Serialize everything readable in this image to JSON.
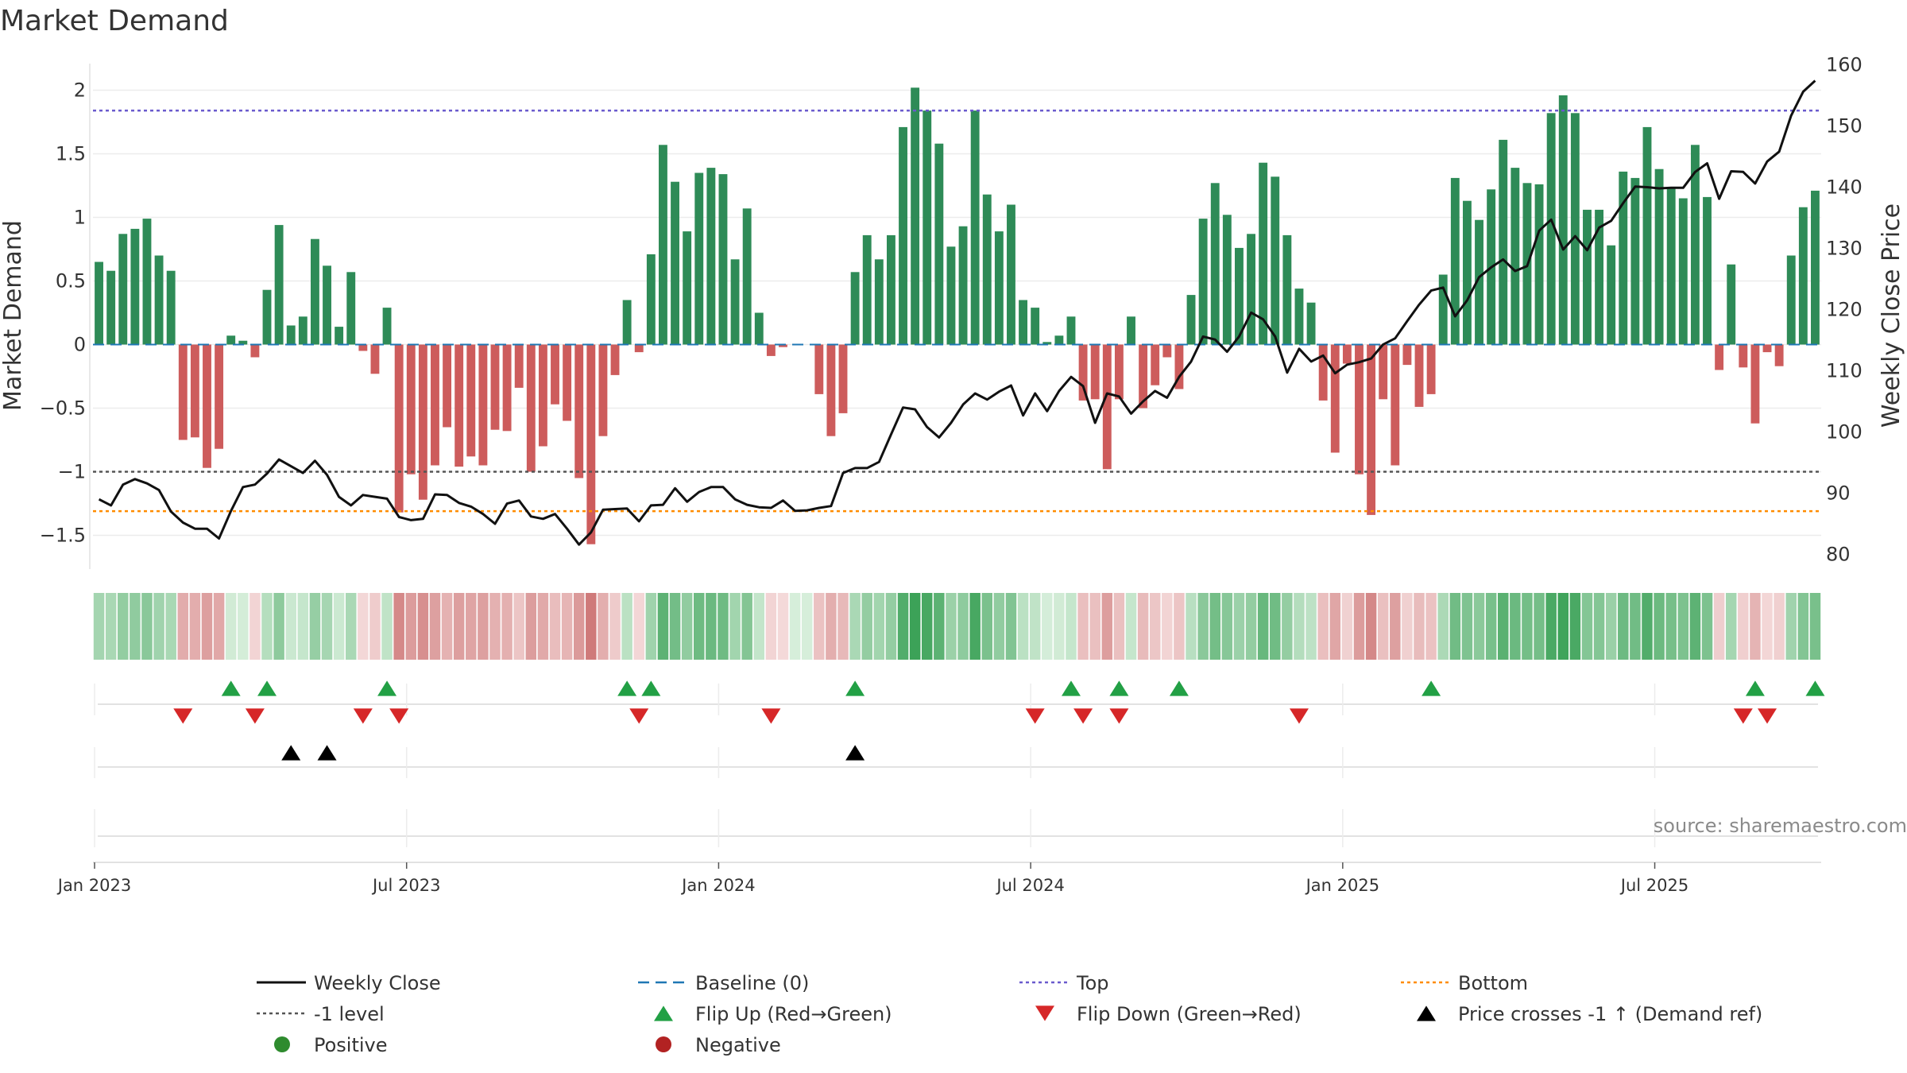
{
  "chart_data": {
    "type": "bar",
    "title": "Market Demand",
    "ylabel_left": "Market Demand",
    "ylabel_right": "Weekly Close Price",
    "ylim_left": [
      -1.75,
      2.15
    ],
    "ylim_right": [
      77,
      160
    ],
    "yticks_left": [
      "2",
      "1.5",
      "1",
      "0.5",
      "0",
      "−0.5",
      "−1",
      "−1.5"
    ],
    "yticks_left_values": [
      2,
      1.5,
      1,
      0.5,
      0,
      -0.5,
      -1,
      -1.5
    ],
    "yticks_right": [
      "160",
      "150",
      "140",
      "130",
      "120",
      "110",
      "100",
      "90",
      "80"
    ],
    "yticks_right_values": [
      160,
      150,
      140,
      130,
      120,
      110,
      100,
      90,
      80
    ],
    "xticks": [
      "Jan 2023",
      "Jul 2023",
      "Jan 2024",
      "Jul 2024",
      "Jan 2025",
      "Jul 2025"
    ],
    "xticks_week_index": [
      0,
      26,
      52,
      78,
      104,
      130
    ],
    "reference_lines": {
      "top": 1.84,
      "minus_one": -1.0,
      "bottom": -1.31,
      "baseline": 0
    },
    "colors": {
      "positive_bar": "#2e8b57",
      "negative_bar": "#cd5c5c",
      "close_line": "#111111",
      "baseline": "#1f77b4",
      "top": "#6a5acd",
      "minus_one": "#555555",
      "bottom": "#ff8c00",
      "flip_up": "#22a045",
      "flip_down": "#d62728",
      "cross": "#000000",
      "positive_dot": "#2e8b2e",
      "negative_dot": "#b22222"
    },
    "start_week": "2023-01-02",
    "series": [
      {
        "name": "Market Demand",
        "values": [
          0.65,
          0.58,
          0.87,
          0.91,
          0.99,
          0.7,
          0.58,
          -0.75,
          -0.73,
          -0.97,
          -0.82,
          0.07,
          0.03,
          -0.1,
          0.43,
          0.94,
          0.15,
          0.22,
          0.83,
          0.62,
          0.14,
          0.57,
          -0.05,
          -0.23,
          0.29,
          -1.32,
          -1.02,
          -1.22,
          -0.95,
          -0.65,
          -0.96,
          -0.88,
          -0.95,
          -0.67,
          -0.68,
          -0.34,
          -1.0,
          -0.8,
          -0.47,
          -0.6,
          -1.05,
          -1.57,
          -0.72,
          -0.24,
          0.35,
          -0.06,
          0.71,
          1.57,
          1.28,
          0.89,
          1.35,
          1.39,
          1.34,
          0.67,
          1.07,
          0.25,
          -0.09,
          -0.02,
          0,
          0,
          -0.39,
          -0.72,
          -0.54,
          0.57,
          0.86,
          0.67,
          0.86,
          1.71,
          2.02,
          1.84,
          1.58,
          0.77,
          0.93,
          1.84,
          1.18,
          0.89,
          1.1,
          0.35,
          0.29,
          0.02,
          0.07,
          0.22,
          -0.44,
          -0.43,
          -0.98,
          -0.43,
          0.22,
          -0.5,
          -0.32,
          -0.1,
          -0.35,
          0.39,
          0.99,
          1.27,
          1.02,
          0.76,
          0.87,
          1.43,
          1.32,
          0.86,
          0.44,
          0.33,
          -0.44,
          -0.85,
          -0.15,
          -1.02,
          -1.34,
          -0.43,
          -0.95,
          -0.16,
          -0.49,
          -0.39,
          0.55,
          1.31,
          1.13,
          0.98,
          1.22,
          1.61,
          1.39,
          1.27,
          1.26,
          1.82,
          1.96,
          1.82,
          1.06,
          1.06,
          0.78,
          1.36,
          1.31,
          1.71,
          1.38,
          1.24,
          1.15,
          1.57,
          1.16,
          -0.2,
          0.63,
          -0.18,
          -0.62,
          -0.06,
          -0.17,
          0.7,
          1.08,
          1.21
        ]
      },
      {
        "name": "Weekly Close",
        "values": [
          89.0,
          88.0,
          91.4,
          92.3,
          91.6,
          90.5,
          87.0,
          85.2,
          84.2,
          84.2,
          82.6,
          87.1,
          91.0,
          91.4,
          93.2,
          95.5,
          94.4,
          93.3,
          95.3,
          93.0,
          89.4,
          88.0,
          89.7,
          89.4,
          89.1,
          86.1,
          85.6,
          85.8,
          89.8,
          89.7,
          88.4,
          87.8,
          86.6,
          85.0,
          88.3,
          88.8,
          86.2,
          85.8,
          86.6,
          84.2,
          81.6,
          83.6,
          87.3,
          87.4,
          87.5,
          85.4,
          88.0,
          88.1,
          90.8,
          88.6,
          90.2,
          91.0,
          91.0,
          89.0,
          88.1,
          87.7,
          87.6,
          88.8,
          87.1,
          87.2,
          87.6,
          87.9,
          93.3,
          94.1,
          94.1,
          95.1,
          99.6,
          104.0,
          103.7,
          100.8,
          99.1,
          101.5,
          104.5,
          106.3,
          105.3,
          106.6,
          107.6,
          102.7,
          106.3,
          103.4,
          106.7,
          109.0,
          107.5,
          101.5,
          106.3,
          105.8,
          103.0,
          105.0,
          106.7,
          105.6,
          109.0,
          111.5,
          115.6,
          115.1,
          113.1,
          115.6,
          119.5,
          118.4,
          115.6,
          109.7,
          113.6,
          111.5,
          112.5,
          109.6,
          111.0,
          111.4,
          112.0,
          114.3,
          115.3,
          118.1,
          120.8,
          123.1,
          123.6,
          118.9,
          121.5,
          125.3,
          126.9,
          128.2,
          126.3,
          127.1,
          132.9,
          134.7,
          129.8,
          132.0,
          129.7,
          133.4,
          134.5,
          137.4,
          140.1,
          140.0,
          139.8,
          139.9,
          139.9,
          142.5,
          143.9,
          138.1,
          142.6,
          142.5,
          140.6,
          144.2,
          145.8,
          151.7,
          155.6,
          157.4
        ]
      }
    ],
    "strip_cells": [
      {
        "v": 0.65
      },
      {
        "v": 0.58
      },
      {
        "v": 0.87
      },
      {
        "v": 0.91
      },
      {
        "v": 0.99
      },
      {
        "v": 0.7
      },
      {
        "v": 0.58
      },
      {
        "v": -0.75
      },
      {
        "v": -0.73
      },
      {
        "v": -0.97
      },
      {
        "v": -0.82
      },
      {
        "v": 0.07
      },
      {
        "v": 0.03
      },
      {
        "v": -0.1
      },
      {
        "v": 0.43
      },
      {
        "v": 0.94
      },
      {
        "v": 0.15
      },
      {
        "v": 0.22
      },
      {
        "v": 0.83
      },
      {
        "v": 0.62
      },
      {
        "v": 0.14
      },
      {
        "v": 0.57
      },
      {
        "v": -0.05
      },
      {
        "v": -0.23
      },
      {
        "v": 0.29
      },
      {
        "v": -1.32
      },
      {
        "v": -1.02
      },
      {
        "v": -1.22
      },
      {
        "v": -0.95
      },
      {
        "v": -0.65
      },
      {
        "v": -0.96
      },
      {
        "v": -0.88
      },
      {
        "v": -0.95
      },
      {
        "v": -0.67
      },
      {
        "v": -0.68
      },
      {
        "v": -0.34
      },
      {
        "v": -1.0
      },
      {
        "v": -0.8
      },
      {
        "v": -0.47
      },
      {
        "v": -0.6
      },
      {
        "v": -1.05
      },
      {
        "v": -1.57
      },
      {
        "v": -0.72
      },
      {
        "v": -0.24
      },
      {
        "v": 0.35
      },
      {
        "v": -0.06
      },
      {
        "v": 0.71
      },
      {
        "v": 1.57
      },
      {
        "v": 1.28
      },
      {
        "v": 0.89
      },
      {
        "v": 1.35
      },
      {
        "v": 1.39
      },
      {
        "v": 1.34
      },
      {
        "v": 0.67
      },
      {
        "v": 1.07
      },
      {
        "v": 0.25
      },
      {
        "v": -0.09
      },
      {
        "v": -0.02
      },
      {
        "v": 0
      },
      {
        "v": 0
      },
      {
        "v": -0.39
      },
      {
        "v": -0.72
      },
      {
        "v": -0.54
      },
      {
        "v": 0.57
      },
      {
        "v": 0.86
      },
      {
        "v": 0.67
      },
      {
        "v": 0.86
      },
      {
        "v": 1.71
      },
      {
        "v": 2.02
      },
      {
        "v": 1.84
      },
      {
        "v": 1.58
      },
      {
        "v": 0.77
      },
      {
        "v": 0.93
      },
      {
        "v": 1.84
      },
      {
        "v": 1.18
      },
      {
        "v": 0.89
      },
      {
        "v": 1.1
      },
      {
        "v": 0.35
      },
      {
        "v": 0.29
      },
      {
        "v": 0.02
      },
      {
        "v": 0.07
      },
      {
        "v": 0.22
      },
      {
        "v": -0.44
      },
      {
        "v": -0.43
      },
      {
        "v": -0.98
      },
      {
        "v": -0.43
      },
      {
        "v": 0.22
      },
      {
        "v": -0.5
      },
      {
        "v": -0.32
      },
      {
        "v": -0.1
      },
      {
        "v": -0.35
      },
      {
        "v": 0.39
      },
      {
        "v": 0.99
      },
      {
        "v": 1.27
      },
      {
        "v": 1.02
      },
      {
        "v": 0.76
      },
      {
        "v": 0.87
      },
      {
        "v": 1.43
      },
      {
        "v": 1.32
      },
      {
        "v": 0.86
      },
      {
        "v": 0.44
      },
      {
        "v": 0.33
      },
      {
        "v": -0.44
      },
      {
        "v": -0.85
      },
      {
        "v": -0.15
      },
      {
        "v": -1.02
      },
      {
        "v": -1.34
      },
      {
        "v": -0.43
      },
      {
        "v": -0.95
      },
      {
        "v": -0.16
      },
      {
        "v": -0.49
      },
      {
        "v": -0.39
      },
      {
        "v": 0.55
      },
      {
        "v": 1.31
      },
      {
        "v": 1.13
      },
      {
        "v": 0.98
      },
      {
        "v": 1.22
      },
      {
        "v": 1.61
      },
      {
        "v": 1.39
      },
      {
        "v": 1.27
      },
      {
        "v": 1.26
      },
      {
        "v": 1.82
      },
      {
        "v": 1.96
      },
      {
        "v": 1.82
      },
      {
        "v": 1.06
      },
      {
        "v": 1.06
      },
      {
        "v": 0.78
      },
      {
        "v": 1.36
      },
      {
        "v": 1.31
      },
      {
        "v": 1.71
      },
      {
        "v": 1.38
      },
      {
        "v": 1.24
      },
      {
        "v": 1.15
      },
      {
        "v": 1.57
      },
      {
        "v": 1.16
      },
      {
        "v": -0.2
      },
      {
        "v": 0.63
      },
      {
        "v": -0.18
      },
      {
        "v": -0.62
      },
      {
        "v": -0.06
      },
      {
        "v": -0.17
      },
      {
        "v": 0.7
      },
      {
        "v": 1.08
      },
      {
        "v": 1.21
      }
    ],
    "flip_up_weeks": [
      11,
      14,
      24,
      44,
      46,
      63,
      81,
      85,
      90,
      111,
      138,
      143
    ],
    "flip_down_weeks": [
      7,
      13,
      22,
      25,
      45,
      56,
      78,
      82,
      85,
      100,
      137,
      139
    ],
    "price_cross_weeks": [
      16,
      19,
      63
    ],
    "legend": [
      {
        "label": "Weekly Close",
        "symbol": "line",
        "color": "#111111"
      },
      {
        "label": "Baseline (0)",
        "symbol": "dash",
        "color": "#1f77b4"
      },
      {
        "label": "Top",
        "symbol": "dot-line",
        "color": "#6a5acd"
      },
      {
        "label": "Bottom",
        "symbol": "dot-line",
        "color": "#ff8c00"
      },
      {
        "label": "-1 level",
        "symbol": "dot-line",
        "color": "#555555"
      },
      {
        "label": "Flip Up (Red→Green)",
        "symbol": "triangle-up",
        "color": "#22a045"
      },
      {
        "label": "Flip Down (Green→Red)",
        "symbol": "triangle-down",
        "color": "#d62728"
      },
      {
        "label": "Price crosses -1 ↑ (Demand ref)",
        "symbol": "triangle-up",
        "color": "#000000"
      },
      {
        "label": "Positive",
        "symbol": "circle",
        "color": "#2e8b2e"
      },
      {
        "label": "Negative",
        "symbol": "circle",
        "color": "#b22222"
      }
    ],
    "source": "source: sharemaestro.com"
  }
}
